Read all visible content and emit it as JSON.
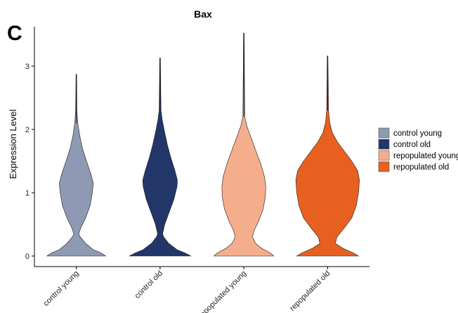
{
  "panel_label": "C",
  "chart_data": {
    "type": "violin",
    "title": "Bax",
    "xlabel": "",
    "ylabel": "Expression Level",
    "ylim": [
      -0.1,
      3.6
    ],
    "yticks": [
      0,
      1,
      2,
      3
    ],
    "categories": [
      "control young",
      "control old",
      "repopulated young",
      "repopulated old"
    ],
    "colors": [
      "#8E99B3",
      "#22366A",
      "#F5AE8C",
      "#E8601F"
    ],
    "max_values": [
      2.87,
      3.13,
      3.52,
      3.16
    ],
    "density_profiles": [
      [
        [
          0.0,
          0.95
        ],
        [
          0.05,
          0.8
        ],
        [
          0.1,
          0.55
        ],
        [
          0.2,
          0.3
        ],
        [
          0.3,
          0.13
        ],
        [
          0.35,
          0.08
        ],
        [
          0.45,
          0.15
        ],
        [
          0.6,
          0.3
        ],
        [
          0.8,
          0.45
        ],
        [
          1.0,
          0.52
        ],
        [
          1.15,
          0.55
        ],
        [
          1.3,
          0.47
        ],
        [
          1.5,
          0.33
        ],
        [
          1.7,
          0.2
        ],
        [
          1.9,
          0.11
        ],
        [
          2.1,
          0.05
        ],
        [
          2.3,
          0.02
        ],
        [
          2.87,
          0.01
        ]
      ],
      [
        [
          0.0,
          1.0
        ],
        [
          0.05,
          0.8
        ],
        [
          0.1,
          0.55
        ],
        [
          0.2,
          0.28
        ],
        [
          0.3,
          0.12
        ],
        [
          0.35,
          0.08
        ],
        [
          0.5,
          0.15
        ],
        [
          0.7,
          0.3
        ],
        [
          0.9,
          0.45
        ],
        [
          1.1,
          0.55
        ],
        [
          1.2,
          0.56
        ],
        [
          1.35,
          0.48
        ],
        [
          1.55,
          0.35
        ],
        [
          1.75,
          0.24
        ],
        [
          1.95,
          0.15
        ],
        [
          2.15,
          0.07
        ],
        [
          2.3,
          0.03
        ],
        [
          3.13,
          0.01
        ]
      ],
      [
        [
          0.0,
          0.97
        ],
        [
          0.05,
          0.85
        ],
        [
          0.12,
          0.58
        ],
        [
          0.2,
          0.38
        ],
        [
          0.3,
          0.28
        ],
        [
          0.4,
          0.33
        ],
        [
          0.55,
          0.48
        ],
        [
          0.75,
          0.63
        ],
        [
          0.95,
          0.7
        ],
        [
          1.1,
          0.71
        ],
        [
          1.25,
          0.67
        ],
        [
          1.45,
          0.55
        ],
        [
          1.65,
          0.4
        ],
        [
          1.85,
          0.25
        ],
        [
          2.05,
          0.1
        ],
        [
          2.2,
          0.03
        ],
        [
          3.52,
          0.01
        ]
      ],
      [
        [
          0.0,
          1.0
        ],
        [
          0.05,
          0.83
        ],
        [
          0.12,
          0.5
        ],
        [
          0.2,
          0.25
        ],
        [
          0.3,
          0.3
        ],
        [
          0.45,
          0.55
        ],
        [
          0.6,
          0.78
        ],
        [
          0.8,
          0.93
        ],
        [
          1.0,
          1.0
        ],
        [
          1.2,
          1.03
        ],
        [
          1.35,
          0.97
        ],
        [
          1.5,
          0.78
        ],
        [
          1.65,
          0.55
        ],
        [
          1.8,
          0.32
        ],
        [
          1.95,
          0.15
        ],
        [
          2.1,
          0.07
        ],
        [
          2.3,
          0.03
        ],
        [
          3.16,
          0.01
        ]
      ]
    ],
    "legend": {
      "position": "right",
      "entries": [
        "control young",
        "control old",
        "repopulated young",
        "repopulated old"
      ]
    },
    "grid": false
  }
}
